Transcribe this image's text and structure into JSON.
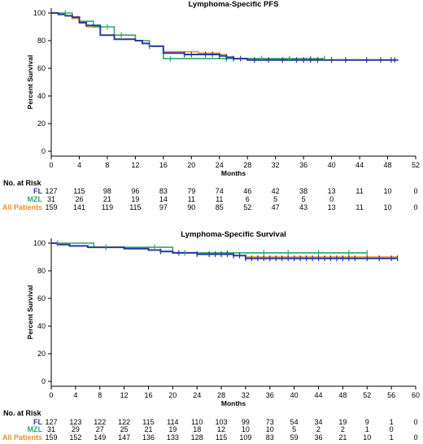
{
  "colors": {
    "FL": "#2b3a9c",
    "MZL": "#2aa866",
    "All": "#e8912a"
  },
  "chart_data": [
    {
      "type": "line",
      "title": "Lymphoma-Specific PFS",
      "xlabel": "Months",
      "ylabel": "Percent Survival",
      "xlim": [
        0,
        52
      ],
      "ylim": [
        0,
        100
      ],
      "xticks": [
        0,
        4,
        8,
        12,
        16,
        20,
        24,
        28,
        32,
        36,
        40,
        44,
        48,
        52
      ],
      "yticks": [
        0,
        20,
        40,
        60,
        80,
        100
      ],
      "series": [
        {
          "key": "All",
          "name": "All Patients",
          "color": "#e8912a",
          "x": [
            0,
            1,
            2,
            3,
            4,
            5,
            7,
            9,
            12,
            13,
            14,
            16,
            19,
            21,
            24,
            25,
            26,
            28,
            49.5
          ],
          "y": [
            100,
            99,
            98,
            96,
            93,
            90,
            84,
            81,
            80,
            78,
            76,
            72,
            72,
            71,
            70,
            68,
            67,
            66,
            66
          ]
        },
        {
          "key": "MZL",
          "name": "MZL",
          "color": "#2aa866",
          "x": [
            0,
            3,
            4,
            6,
            9,
            10,
            11,
            12,
            14,
            16,
            26,
            39
          ],
          "y": [
            100,
            97,
            94,
            90,
            84,
            84,
            84,
            80,
            76,
            67,
            67,
            67
          ]
        },
        {
          "key": "FL",
          "name": "FL",
          "color": "#2b3a9c",
          "x": [
            0,
            1,
            2,
            3,
            4,
            5,
            7,
            9,
            12,
            13,
            14,
            16,
            19,
            21,
            24,
            25,
            26,
            28,
            49.5
          ],
          "y": [
            100,
            99,
            98,
            97,
            93,
            91,
            84,
            81,
            80,
            78,
            76,
            71,
            70,
            70,
            69,
            68,
            67,
            66,
            66
          ]
        }
      ],
      "censor_marks": {
        "FL": [
          19,
          20,
          22,
          23,
          24,
          25,
          26,
          27,
          29,
          31,
          33,
          35,
          36,
          37,
          38,
          40,
          42,
          45,
          47,
          48.5,
          49
        ],
        "MZL": [
          2,
          8,
          10,
          14,
          17,
          25,
          30,
          34,
          37,
          39
        ]
      },
      "risk_table": {
        "header": "No. at Risk",
        "times": [
          0,
          4,
          8,
          12,
          16,
          20,
          24,
          28,
          32,
          36,
          40,
          44,
          48,
          52
        ],
        "rows": [
          {
            "key": "FL",
            "label": "FL",
            "color": "#2b3a9c",
            "values": [
              "127",
              "115",
              "98",
              "96",
              "83",
              "79",
              "74",
              "46",
              "42",
              "38",
              "13",
              "11",
              "10",
              "0"
            ]
          },
          {
            "key": "MZL",
            "label": "MZL",
            "color": "#2aa866",
            "values": [
              "31",
              "26",
              "21",
              "19",
              "14",
              "11",
              "11",
              "6",
              "5",
              "5",
              "0",
              "",
              "",
              ""
            ]
          },
          {
            "key": "All",
            "label": "All Patients",
            "color": "#e8912a",
            "values": [
              "159",
              "141",
              "119",
              "115",
              "97",
              "90",
              "85",
              "52",
              "47",
              "43",
              "13",
              "11",
              "10",
              "0"
            ]
          }
        ]
      }
    },
    {
      "type": "line",
      "title": "Lymphoma-Specific Survival",
      "xlabel": "Months",
      "ylabel": "Percent Survival",
      "xlim": [
        0,
        60
      ],
      "ylim": [
        0,
        100
      ],
      "xticks": [
        0,
        4,
        8,
        12,
        16,
        20,
        24,
        28,
        32,
        36,
        40,
        44,
        48,
        52,
        56,
        60
      ],
      "yticks": [
        0,
        20,
        40,
        60,
        80,
        100
      ],
      "series": [
        {
          "key": "All",
          "name": "All Patients",
          "color": "#e8912a",
          "x": [
            0,
            1,
            3,
            6,
            12,
            16,
            18,
            20,
            24,
            30,
            32,
            57
          ],
          "y": [
            100,
            99,
            98,
            97,
            96,
            95,
            94,
            93,
            92,
            91,
            90,
            90
          ]
        },
        {
          "key": "MZL",
          "name": "MZL",
          "color": "#2aa866",
          "x": [
            0,
            1,
            7,
            18,
            20,
            28,
            52
          ],
          "y": [
            100,
            100,
            97,
            97,
            93,
            93,
            93
          ]
        },
        {
          "key": "FL",
          "name": "FL",
          "color": "#2b3a9c",
          "x": [
            0,
            1,
            3,
            6,
            12,
            16,
            18,
            20,
            24,
            30,
            32,
            57
          ],
          "y": [
            100,
            99,
            98,
            97,
            96,
            95,
            94,
            93,
            92,
            91,
            89,
            89
          ]
        }
      ],
      "censor_marks": {
        "FL": [
          18,
          21,
          24,
          26,
          27,
          28,
          29,
          30,
          31,
          32,
          33,
          34,
          35,
          36,
          37,
          38,
          39,
          40,
          41,
          42,
          43,
          44,
          45,
          46,
          47,
          48,
          49,
          50,
          52,
          54,
          56,
          57
        ],
        "MZL": [
          1,
          9,
          17,
          22,
          29,
          35,
          39,
          44,
          49,
          52
        ]
      },
      "risk_table": {
        "header": "No. at Risk",
        "times": [
          0,
          4,
          8,
          12,
          16,
          20,
          24,
          28,
          32,
          36,
          40,
          44,
          48,
          52,
          56,
          60
        ],
        "rows": [
          {
            "key": "FL",
            "label": "FL",
            "color": "#2b3a9c",
            "values": [
              "127",
              "123",
              "122",
              "122",
              "115",
              "114",
              "110",
              "103",
              "99",
              "73",
              "54",
              "34",
              "19",
              "9",
              "1",
              "0"
            ]
          },
          {
            "key": "MZL",
            "label": "MZL",
            "color": "#2aa866",
            "values": [
              "31",
              "29",
              "27",
              "25",
              "21",
              "19",
              "18",
              "12",
              "10",
              "10",
              "5",
              "2",
              "2",
              "1",
              "0",
              ""
            ]
          },
          {
            "key": "All",
            "label": "All Patients",
            "color": "#e8912a",
            "values": [
              "159",
              "152",
              "149",
              "147",
              "136",
              "133",
              "128",
              "115",
              "109",
              "83",
              "59",
              "36",
              "21",
              "10",
              "1",
              "0"
            ]
          }
        ]
      }
    }
  ]
}
